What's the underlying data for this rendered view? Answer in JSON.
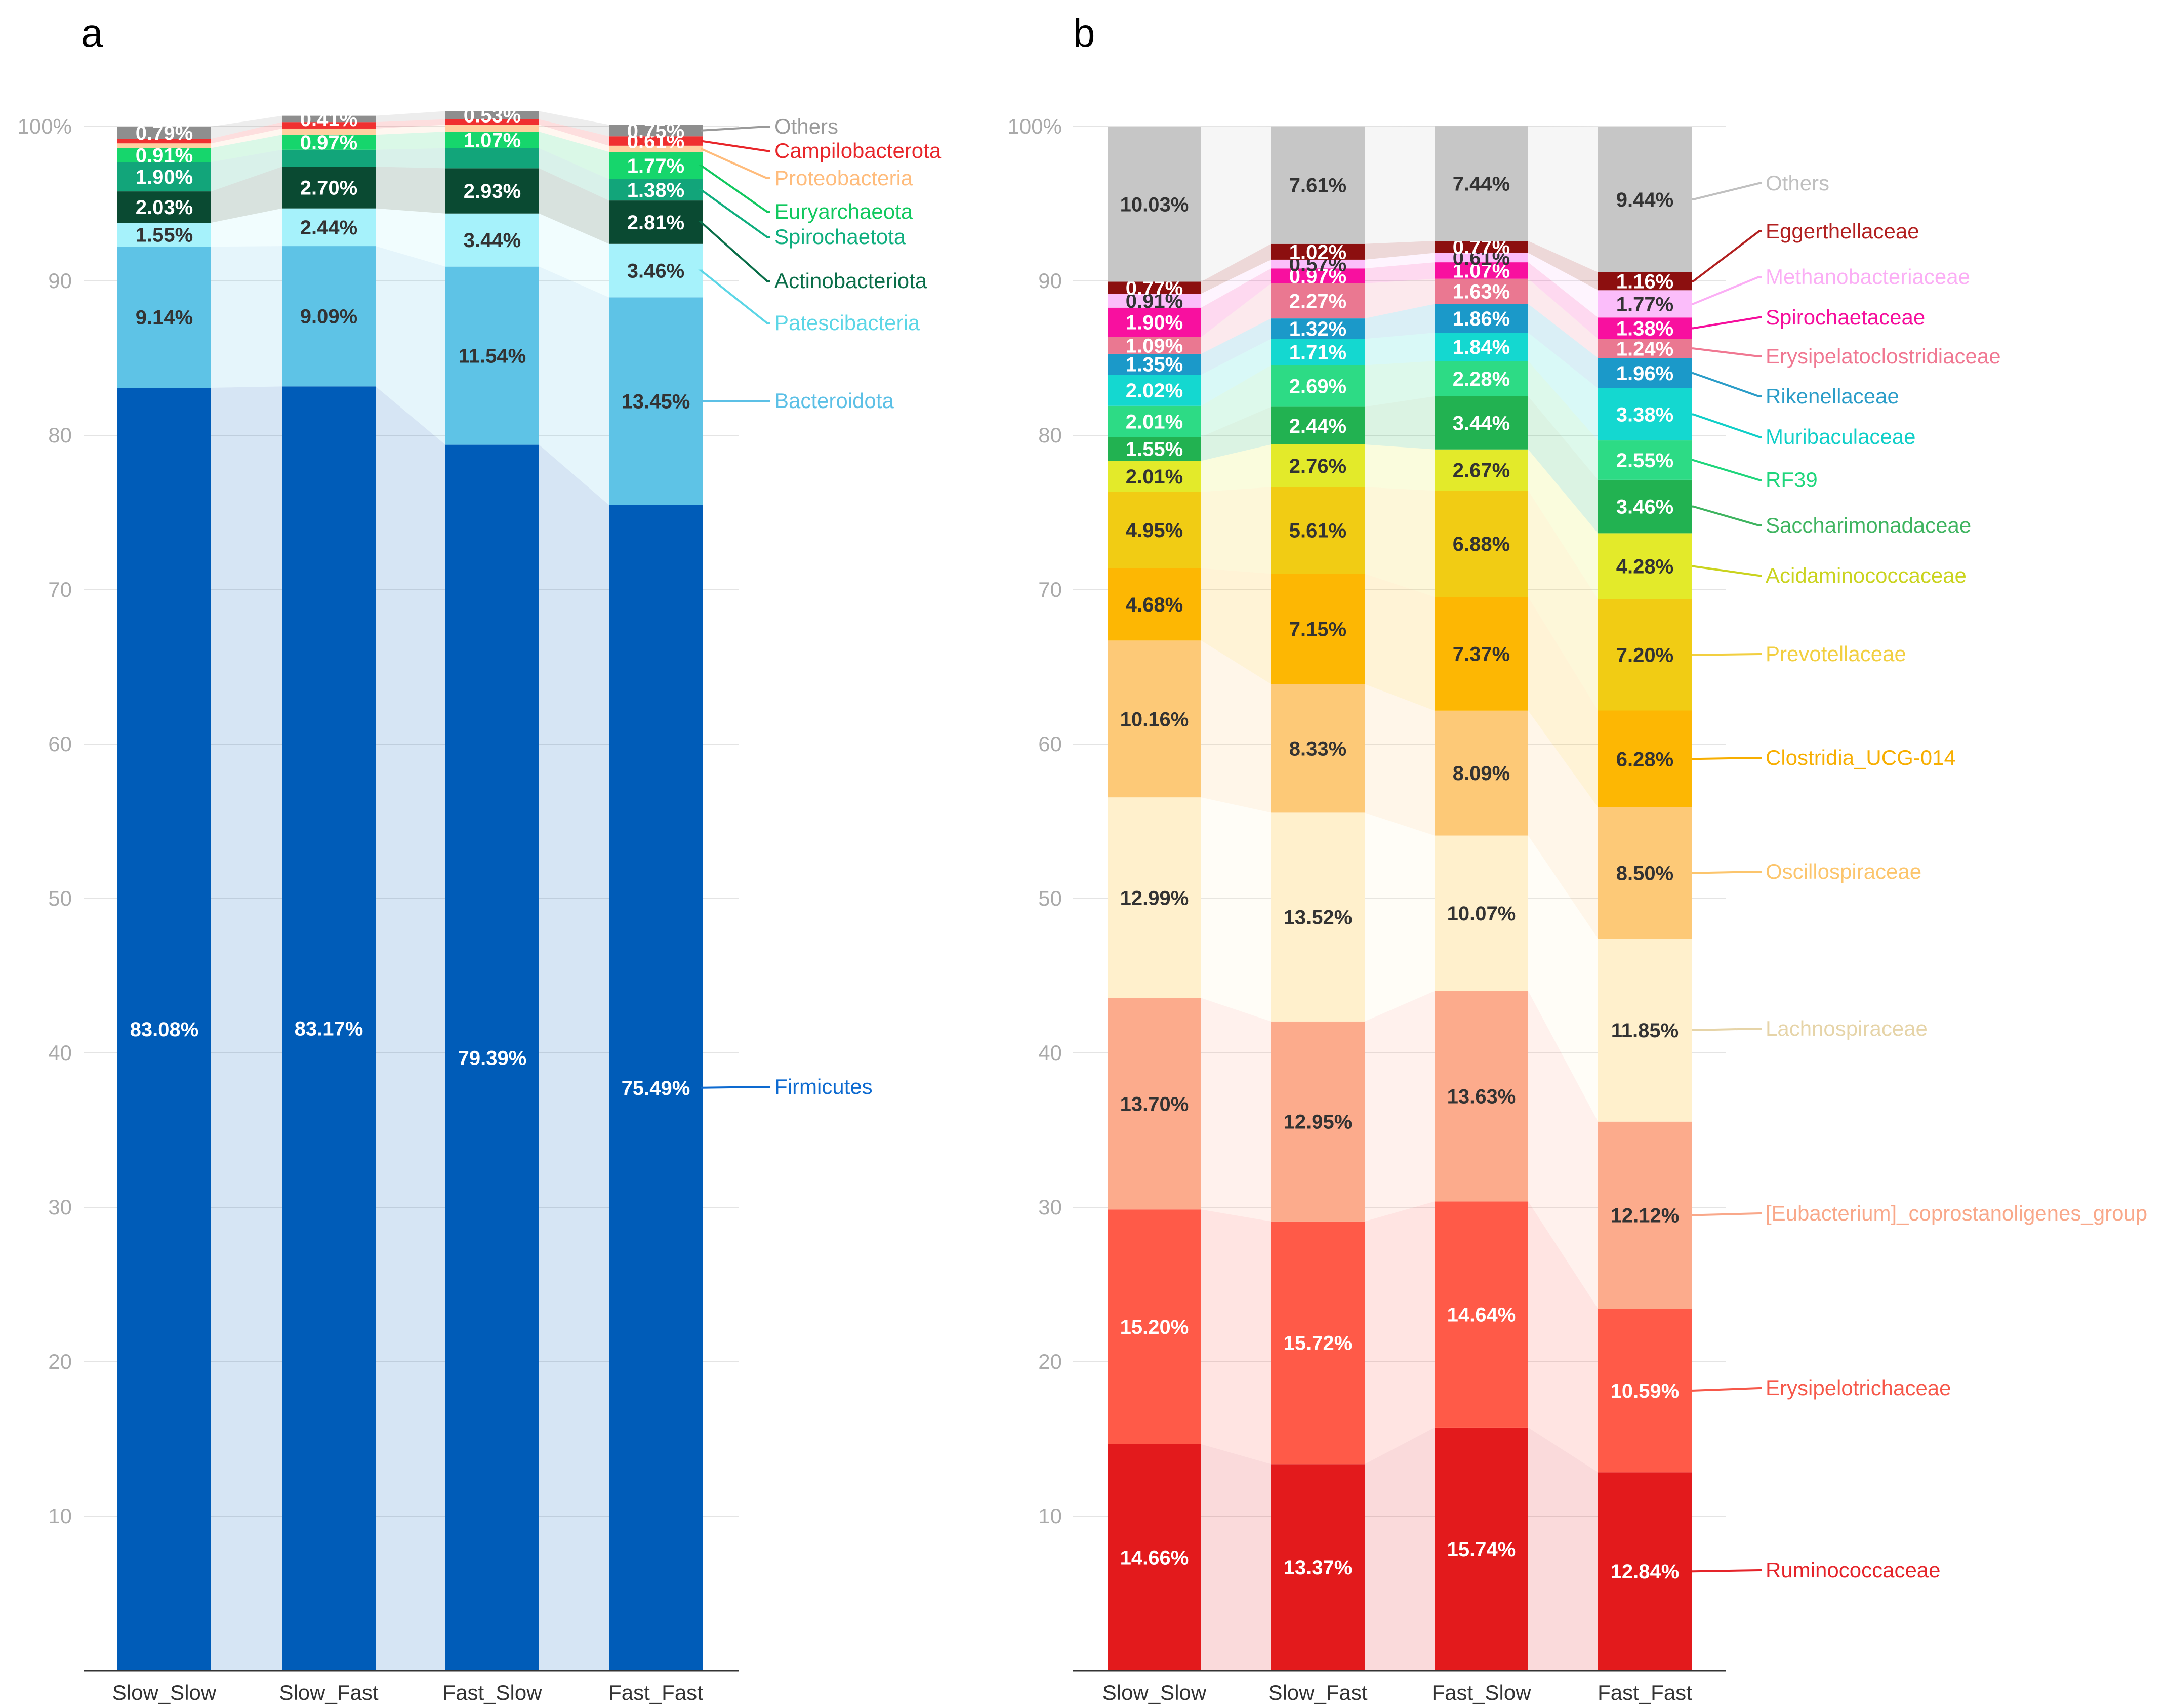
{
  "chart_data": [
    {
      "type": "bar",
      "stacked": true,
      "panel_label": "a",
      "categories": [
        "Slow_Slow",
        "Slow_Fast",
        "Fast_Slow",
        "Fast_Fast"
      ],
      "ylim": [
        0,
        100
      ],
      "ytick_labels": [
        "",
        "10",
        "20",
        "30",
        "40",
        "50",
        "60",
        "70",
        "80",
        "90",
        "100%"
      ],
      "grid": true,
      "legend_position": "right",
      "series": [
        {
          "name": "Firmicutes",
          "color": "#005cb8",
          "values": [
            83.08,
            83.17,
            79.39,
            75.49
          ],
          "labels": [
            "83.08%",
            "83.17%",
            "79.39%",
            "75.49%"
          ]
        },
        {
          "name": "Bacteroidota",
          "color": "#5ec3e6",
          "values": [
            9.14,
            9.09,
            11.54,
            13.45
          ],
          "labels": [
            "9.14%",
            "9.09%",
            "11.54%",
            "13.45%"
          ]
        },
        {
          "name": "Patescibacteria",
          "color": "#a6f2fb",
          "values": [
            1.55,
            2.44,
            3.44,
            3.46
          ],
          "labels": [
            "1.55%",
            "2.44%",
            "3.44%",
            "3.46%"
          ]
        },
        {
          "name": "Actinobacteriota",
          "color": "#0a4a32",
          "values": [
            2.03,
            2.7,
            2.93,
            2.81
          ],
          "labels": [
            "2.03%",
            "2.70%",
            "2.93%",
            "2.81%"
          ]
        },
        {
          "name": "Spirochaetota",
          "color": "#12a57a",
          "values": [
            1.9,
            1.1,
            1.3,
            1.38
          ],
          "labels": [
            "1.90%",
            "",
            "",
            "1.38%"
          ]
        },
        {
          "name": "Euryarchaeota",
          "color": "#16d66c",
          "values": [
            0.91,
            0.97,
            1.07,
            1.77
          ],
          "labels": [
            "0.91%",
            "0.97%",
            "1.07%",
            "1.77%"
          ]
        },
        {
          "name": "Proteobacteria",
          "color": "#ffd0a0",
          "values": [
            0.3,
            0.4,
            0.45,
            0.4
          ],
          "labels": [
            "",
            "",
            "",
            ""
          ]
        },
        {
          "name": "Campilobacterota",
          "color": "#f03030",
          "values": [
            0.3,
            0.42,
            0.35,
            0.61
          ],
          "labels": [
            "",
            "",
            "",
            "0.61%"
          ]
        },
        {
          "name": "Others",
          "color": "#8e8e8e",
          "values": [
            0.79,
            0.41,
            0.53,
            0.75
          ],
          "labels": [
            "0.79%",
            "0.41%",
            "0.53%",
            "0.75%"
          ]
        }
      ],
      "legend": [
        {
          "name": "Others",
          "color": "#9a9a9a"
        },
        {
          "name": "Campilobacterota",
          "color": "#e8262a"
        },
        {
          "name": "Proteobacteria",
          "color": "#ffbc7c"
        },
        {
          "name": "Euryarchaeota",
          "color": "#11c85e"
        },
        {
          "name": "Spirochaetota",
          "color": "#0fae7e"
        },
        {
          "name": "Actinobacteriota",
          "color": "#0a6e49"
        },
        {
          "name": "Patescibacteria",
          "color": "#5cd6e6"
        },
        {
          "name": "Bacteroidota",
          "color": "#5cc0e6"
        },
        {
          "name": "Firmicutes",
          "color": "#0d6ad0"
        }
      ]
    },
    {
      "type": "bar",
      "stacked": true,
      "panel_label": "b",
      "categories": [
        "Slow_Slow",
        "Slow_Fast",
        "Fast_Slow",
        "Fast_Fast"
      ],
      "ylim": [
        0,
        100
      ],
      "ytick_labels": [
        "",
        "10",
        "20",
        "30",
        "40",
        "50",
        "60",
        "70",
        "80",
        "90",
        "100%"
      ],
      "grid": true,
      "legend_position": "right",
      "series": [
        {
          "name": "Ruminococcaceae",
          "color": "#e31a1c",
          "values": [
            14.66,
            13.37,
            15.74,
            12.84
          ],
          "labels": [
            "14.66%",
            "13.37%",
            "15.74%",
            "12.84%"
          ]
        },
        {
          "name": "Erysipelotrichaceae",
          "color": "#ff5a48",
          "values": [
            15.2,
            15.72,
            14.64,
            10.59
          ],
          "labels": [
            "15.20%",
            "15.72%",
            "14.64%",
            "10.59%"
          ]
        },
        {
          "name": "[Eubacterium]_coprostanoligenes_group",
          "color": "#fcab8c",
          "values": [
            13.7,
            12.95,
            13.63,
            12.12
          ],
          "labels": [
            "13.70%",
            "12.95%",
            "13.63%",
            "12.12%"
          ]
        },
        {
          "name": "Lachnospiraceae",
          "color": "#fff0cc",
          "values": [
            12.99,
            13.52,
            10.07,
            11.85
          ],
          "labels": [
            "12.99%",
            "13.52%",
            "10.07%",
            "11.85%"
          ]
        },
        {
          "name": "Oscillospiraceae",
          "color": "#fdc977",
          "values": [
            10.16,
            8.33,
            8.09,
            8.5
          ],
          "labels": [
            "10.16%",
            "8.33%",
            "8.09%",
            "8.50%"
          ]
        },
        {
          "name": "Clostridia_UCG-014",
          "color": "#fdb703",
          "values": [
            4.68,
            7.15,
            7.37,
            6.28
          ],
          "labels": [
            "4.68%",
            "7.15%",
            "7.37%",
            "6.28%"
          ]
        },
        {
          "name": "Prevotellaceae",
          "color": "#f1cc14",
          "values": [
            4.95,
            5.61,
            6.88,
            7.2
          ],
          "labels": [
            "4.95%",
            "5.61%",
            "6.88%",
            "7.20%"
          ]
        },
        {
          "name": "Acidaminococcaceae",
          "color": "#e3ea2a",
          "values": [
            2.01,
            2.76,
            2.67,
            4.28
          ],
          "labels": [
            "2.01%",
            "2.76%",
            "2.67%",
            "4.28%"
          ]
        },
        {
          "name": "Saccharimonadaceae",
          "color": "#22b251",
          "values": [
            1.55,
            2.44,
            3.44,
            3.46
          ],
          "labels": [
            "1.55%",
            "2.44%",
            "3.44%",
            "3.46%"
          ]
        },
        {
          "name": "RF39",
          "color": "#2ddb85",
          "values": [
            2.01,
            2.69,
            2.28,
            2.55
          ],
          "labels": [
            "2.01%",
            "2.69%",
            "2.28%",
            "2.55%"
          ]
        },
        {
          "name": "Muribaculaceae",
          "color": "#14d8d0",
          "values": [
            2.02,
            1.71,
            1.84,
            3.38
          ],
          "labels": [
            "2.02%",
            "1.71%",
            "1.84%",
            "3.38%"
          ]
        },
        {
          "name": "Rikenellaceae",
          "color": "#1b99c9",
          "values": [
            1.35,
            1.32,
            1.86,
            1.96
          ],
          "labels": [
            "1.35%",
            "1.32%",
            "1.86%",
            "1.96%"
          ]
        },
        {
          "name": "Erysipelatoclostridiaceae",
          "color": "#ea7891",
          "values": [
            1.09,
            2.27,
            1.63,
            1.24
          ],
          "labels": [
            "1.09%",
            "2.27%",
            "1.63%",
            "1.24%"
          ]
        },
        {
          "name": "Spirochaetaceae",
          "color": "#f8109f",
          "values": [
            1.9,
            0.97,
            1.07,
            1.38
          ],
          "labels": [
            "1.90%",
            "0.97%",
            "1.07%",
            "1.38%"
          ]
        },
        {
          "name": "Methanobacteriaceae",
          "color": "#fbbdfa",
          "values": [
            0.91,
            0.57,
            0.61,
            1.77
          ],
          "labels": [
            "0.91%",
            "0.57%",
            "0.61%",
            "1.77%"
          ]
        },
        {
          "name": "Eggerthellaceae",
          "color": "#8c0f0f",
          "values": [
            0.77,
            1.02,
            0.77,
            1.16
          ],
          "labels": [
            "0.77%",
            "1.02%",
            "0.77%",
            "1.16%"
          ]
        },
        {
          "name": "Others",
          "color": "#c6c6c6",
          "values": [
            10.03,
            7.61,
            7.44,
            9.44
          ],
          "labels": [
            "10.03%",
            "7.61%",
            "7.44%",
            "9.44%"
          ]
        }
      ],
      "legend": [
        {
          "name": "Others",
          "color": "#c0c0c0"
        },
        {
          "name": "Eggerthellaceae",
          "color": "#b22020"
        },
        {
          "name": "Methanobacteriaceae",
          "color": "#fbaef5"
        },
        {
          "name": "Spirochaetaceae",
          "color": "#f50e9c"
        },
        {
          "name": "Erysipelatoclostridiaceae",
          "color": "#f07892"
        },
        {
          "name": "Rikenellaceae",
          "color": "#2b9dc8"
        },
        {
          "name": "Muribaculaceae",
          "color": "#10cfc8"
        },
        {
          "name": "RF39",
          "color": "#1fd67c"
        },
        {
          "name": "Saccharimonadaceae",
          "color": "#3fb460"
        },
        {
          "name": "Acidaminococcaceae",
          "color": "#cad31e"
        },
        {
          "name": "Prevotellaceae",
          "color": "#f2cf40"
        },
        {
          "name": "Clostridia_UCG-014",
          "color": "#f7ae00"
        },
        {
          "name": "Oscillospiraceae",
          "color": "#fcc56c"
        },
        {
          "name": "Lachnospiraceae",
          "color": "#e6d4a8"
        },
        {
          "name": "[Eubacterium]_coprostanoligenes_group",
          "color": "#f9a88a"
        },
        {
          "name": "Erysipelotrichaceae",
          "color": "#f6584a"
        },
        {
          "name": "Ruminococcaceae",
          "color": "#e5242a"
        }
      ]
    }
  ]
}
